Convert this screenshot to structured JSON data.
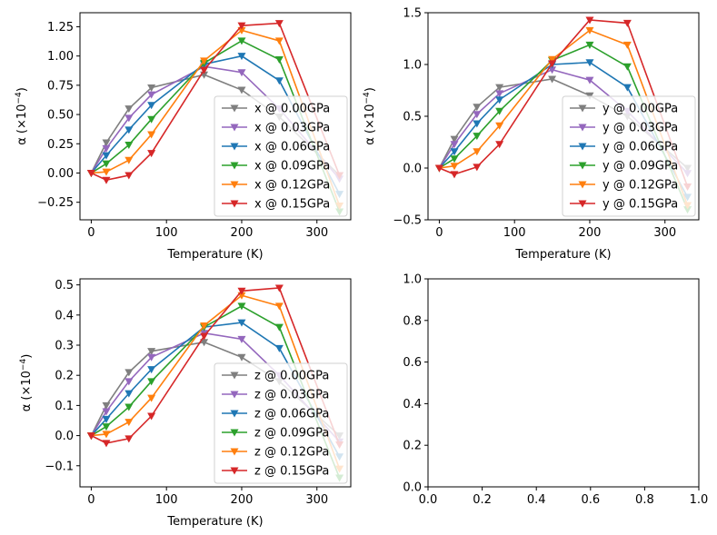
{
  "chart_data": [
    {
      "type": "line",
      "panel": "top-left",
      "xlabel": "Temperature (K)",
      "ylabel_base": "α (×10",
      "ylabel_exp": "−4",
      "ylabel_tail": ")",
      "xlim": [
        -15,
        345
      ],
      "ylim": [
        -0.4,
        1.37
      ],
      "xticks": [
        0,
        100,
        200,
        300
      ],
      "yticks": [
        -0.25,
        0.0,
        0.25,
        0.5,
        0.75,
        1.0,
        1.25
      ],
      "ytick_labels": [
        "−0.25",
        "0.00",
        "0.25",
        "0.50",
        "0.75",
        "1.00",
        "1.25"
      ],
      "legend_loc": "lower-right",
      "x": [
        0,
        20,
        50,
        80,
        150,
        200,
        250,
        330
      ],
      "series": [
        {
          "name": "x @ 0.00GPa",
          "color": "#7f7f7f",
          "values": [
            0.0,
            0.26,
            0.55,
            0.73,
            0.84,
            0.71,
            0.48,
            -0.02
          ]
        },
        {
          "name": "x @ 0.03GPa",
          "color": "#9467bd",
          "values": [
            0.0,
            0.21,
            0.47,
            0.67,
            0.91,
            0.86,
            0.55,
            -0.05
          ]
        },
        {
          "name": "x @ 0.06GPa",
          "color": "#1f77b4",
          "values": [
            0.0,
            0.15,
            0.37,
            0.58,
            0.93,
            1.0,
            0.79,
            -0.18
          ]
        },
        {
          "name": "x @ 0.09GPa",
          "color": "#2ca02c",
          "values": [
            0.0,
            0.08,
            0.24,
            0.46,
            0.94,
            1.13,
            0.97,
            -0.33
          ]
        },
        {
          "name": "x @ 0.12GPa",
          "color": "#ff7f0e",
          "values": [
            0.0,
            0.01,
            0.11,
            0.33,
            0.96,
            1.22,
            1.13,
            -0.28
          ]
        },
        {
          "name": "x @ 0.15GPa",
          "color": "#d62728",
          "values": [
            0.0,
            -0.06,
            -0.02,
            0.17,
            0.88,
            1.26,
            1.28,
            -0.02
          ]
        }
      ]
    },
    {
      "type": "line",
      "panel": "top-right",
      "xlabel": "Temperature (K)",
      "ylabel_base": "α (×10",
      "ylabel_exp": "−4",
      "ylabel_tail": ")",
      "xlim": [
        -15,
        345
      ],
      "ylim": [
        -0.5,
        1.5
      ],
      "xticks": [
        0,
        100,
        200,
        300
      ],
      "yticks": [
        -0.5,
        0.0,
        0.5,
        1.0,
        1.5
      ],
      "ytick_labels": [
        "−0.5",
        "0.0",
        "0.5",
        "1.0",
        "1.5"
      ],
      "legend_loc": "lower-right",
      "x": [
        0,
        20,
        50,
        80,
        150,
        200,
        250,
        330
      ],
      "series": [
        {
          "name": "y @ 0.00GPa",
          "color": "#7f7f7f",
          "values": [
            0.0,
            0.28,
            0.59,
            0.78,
            0.86,
            0.7,
            0.5,
            0.0
          ]
        },
        {
          "name": "y @ 0.03GPa",
          "color": "#9467bd",
          "values": [
            0.0,
            0.23,
            0.52,
            0.72,
            0.95,
            0.85,
            0.55,
            -0.05
          ]
        },
        {
          "name": "y @ 0.06GPa",
          "color": "#1f77b4",
          "values": [
            0.0,
            0.16,
            0.43,
            0.66,
            1.0,
            1.02,
            0.78,
            -0.28
          ]
        },
        {
          "name": "y @ 0.09GPa",
          "color": "#2ca02c",
          "values": [
            0.0,
            0.09,
            0.31,
            0.55,
            1.04,
            1.19,
            0.98,
            -0.4
          ]
        },
        {
          "name": "y @ 0.12GPa",
          "color": "#ff7f0e",
          "values": [
            0.0,
            0.02,
            0.16,
            0.41,
            1.05,
            1.33,
            1.19,
            -0.36
          ]
        },
        {
          "name": "y @ 0.15GPa",
          "color": "#d62728",
          "values": [
            0.0,
            -0.06,
            0.01,
            0.23,
            1.01,
            1.43,
            1.4,
            -0.18
          ]
        }
      ]
    },
    {
      "type": "line",
      "panel": "bottom-left",
      "xlabel": "Temperature (K)",
      "ylabel_base": "α (×10",
      "ylabel_exp": "−4",
      "ylabel_tail": ")",
      "xlim": [
        -15,
        345
      ],
      "ylim": [
        -0.17,
        0.52
      ],
      "xticks": [
        0,
        100,
        200,
        300
      ],
      "yticks": [
        -0.1,
        0.0,
        0.1,
        0.2,
        0.3,
        0.4,
        0.5
      ],
      "ytick_labels": [
        "−0.1",
        "0.0",
        "0.1",
        "0.2",
        "0.3",
        "0.4",
        "0.5"
      ],
      "legend_loc": "lower-right",
      "x": [
        0,
        20,
        50,
        80,
        150,
        200,
        250,
        330
      ],
      "series": [
        {
          "name": "z @ 0.00GPa",
          "color": "#7f7f7f",
          "values": [
            0.0,
            0.1,
            0.21,
            0.28,
            0.31,
            0.26,
            0.18,
            0.0
          ]
        },
        {
          "name": "z @ 0.03GPa",
          "color": "#9467bd",
          "values": [
            0.0,
            0.08,
            0.18,
            0.26,
            0.34,
            0.32,
            0.2,
            -0.02
          ]
        },
        {
          "name": "z @ 0.06GPa",
          "color": "#1f77b4",
          "values": [
            0.0,
            0.055,
            0.14,
            0.22,
            0.36,
            0.375,
            0.29,
            -0.07
          ]
        },
        {
          "name": "z @ 0.09GPa",
          "color": "#2ca02c",
          "values": [
            0.0,
            0.03,
            0.095,
            0.18,
            0.36,
            0.43,
            0.36,
            -0.14
          ]
        },
        {
          "name": "z @ 0.12GPa",
          "color": "#ff7f0e",
          "values": [
            0.0,
            0.005,
            0.045,
            0.125,
            0.365,
            0.465,
            0.43,
            -0.11
          ]
        },
        {
          "name": "z @ 0.15GPa",
          "color": "#d62728",
          "values": [
            0.0,
            -0.025,
            -0.01,
            0.065,
            0.33,
            0.48,
            0.49,
            -0.03
          ]
        }
      ]
    },
    {
      "type": "line",
      "panel": "bottom-right",
      "xlabel": "",
      "ylabel_base": "",
      "ylabel_exp": "",
      "ylabel_tail": "",
      "xlim": [
        0,
        1
      ],
      "ylim": [
        0,
        1
      ],
      "xticks": [
        0,
        0.2,
        0.4,
        0.6,
        0.8,
        1.0
      ],
      "xtick_labels": [
        "0.0",
        "0.2",
        "0.4",
        "0.6",
        "0.8",
        "1.0"
      ],
      "yticks": [
        0,
        0.2,
        0.4,
        0.6,
        0.8,
        1.0
      ],
      "ytick_labels": [
        "0.0",
        "0.2",
        "0.4",
        "0.6",
        "0.8",
        "1.0"
      ],
      "legend_loc": "none",
      "x": [],
      "series": []
    }
  ]
}
